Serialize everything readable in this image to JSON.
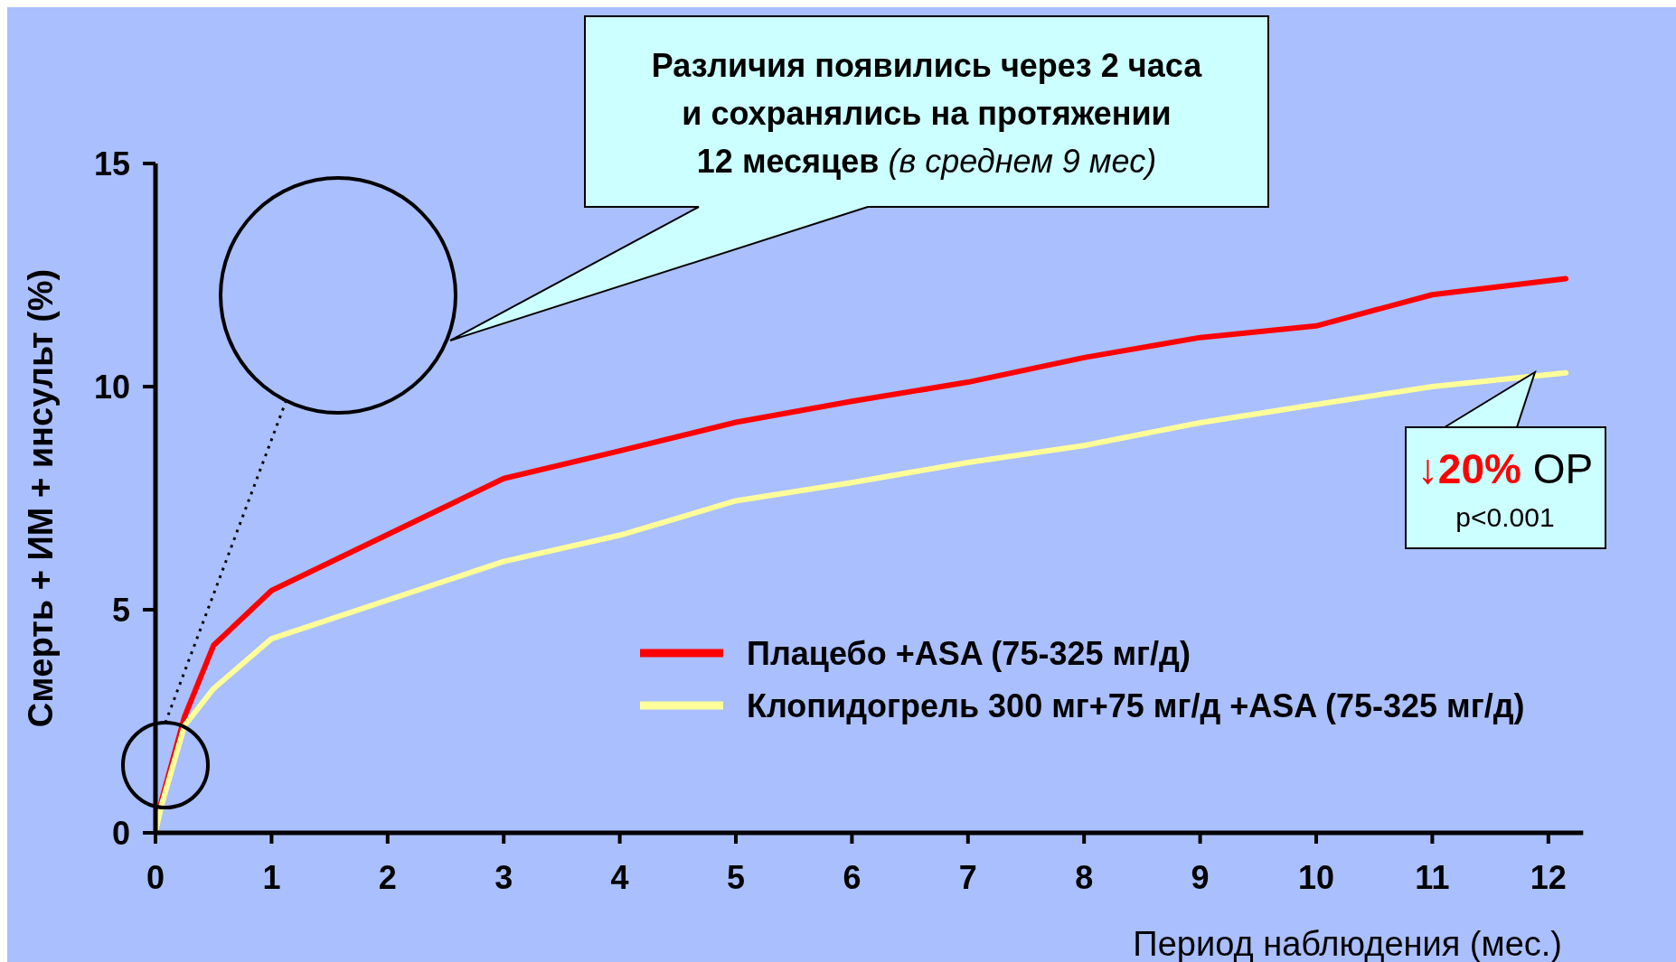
{
  "chart_data": {
    "type": "line",
    "xlabel": "Период наблюдения (мес.)",
    "ylabel": "Смерть + ИМ + инсульт (%)",
    "xlim": [
      0,
      12.3
    ],
    "ylim": [
      0,
      15
    ],
    "xticks": [
      0,
      1,
      2,
      3,
      4,
      5,
      6,
      7,
      8,
      9,
      10,
      11,
      12
    ],
    "yticks": [
      0,
      5,
      10,
      15
    ],
    "grid": false,
    "legend": "right",
    "line_style": "solid",
    "series": [
      {
        "name": "Плацебо +ASA (75-325 мг/д)",
        "color": "#ff0000",
        "x": [
          0,
          0.05,
          0.25,
          0.5,
          1,
          3,
          4,
          5,
          6,
          7,
          8,
          9,
          10,
          11,
          12.15
        ],
        "values": [
          0,
          0.7,
          2.6,
          4.2,
          5.43,
          7.94,
          8.56,
          9.2,
          9.67,
          10.1,
          10.65,
          11.1,
          11.36,
          12.06,
          12.42
        ]
      },
      {
        "name": "Клопидогрель 300 мг+75 мг/д +ASA (75-325 мг/д)",
        "color": "#ffff99",
        "x": [
          0,
          0.05,
          0.25,
          0.5,
          1,
          3,
          4,
          5,
          6,
          7,
          8,
          9,
          10,
          11,
          12.15
        ],
        "values": [
          0,
          0.6,
          2.4,
          3.23,
          4.35,
          6.08,
          6.67,
          7.44,
          7.85,
          8.3,
          8.68,
          9.19,
          9.6,
          10.0,
          10.31
        ]
      }
    ],
    "annotations": [
      "Различия появились через 2 часа\nи сохранялись на протяжении\n12 месяцев",
      "(в среднем 9 мес)",
      "↓20%",
      "ОР",
      "p<0.001"
    ]
  }
}
